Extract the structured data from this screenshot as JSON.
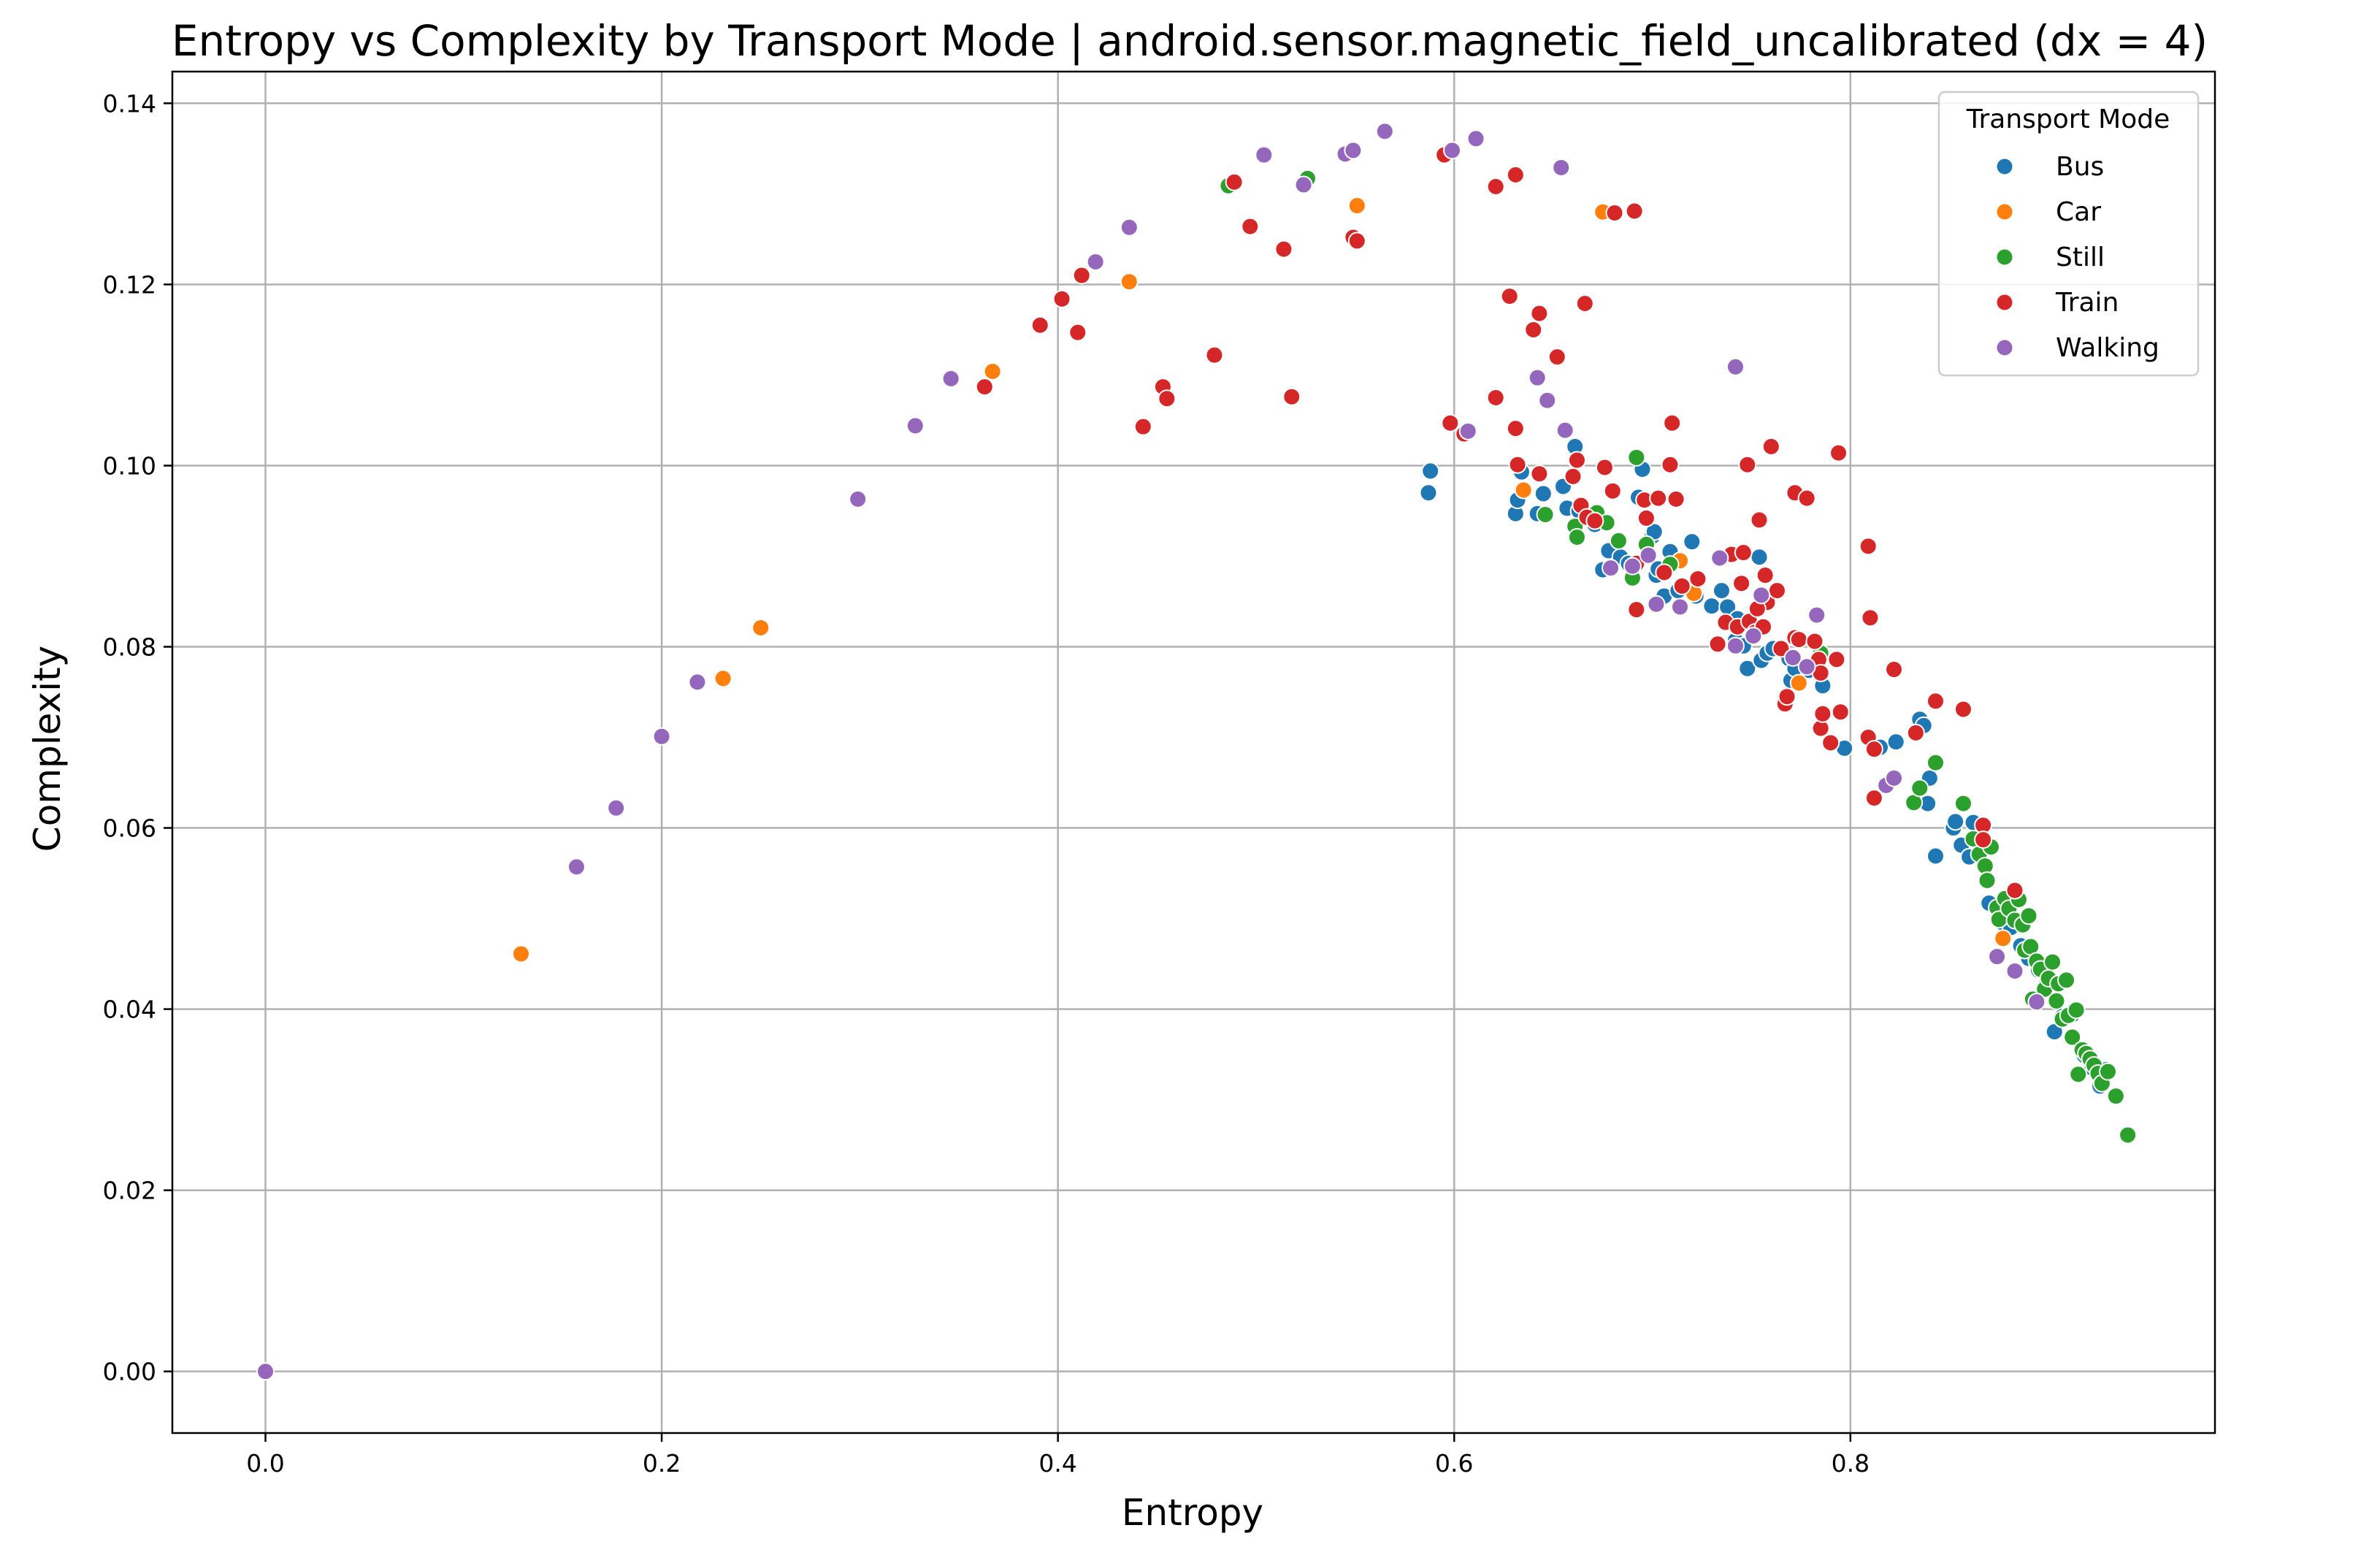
{
  "chart_data": {
    "type": "scatter",
    "title": "Entropy vs Complexity by Transport Mode | android.sensor.magnetic_field_uncalibrated (dx = 4)",
    "xlabel": "Entropy",
    "ylabel": "Complexity",
    "xlim": [
      -0.047,
      0.984
    ],
    "ylim": [
      -0.0068,
      0.1435
    ],
    "xticks": [
      0.0,
      0.2,
      0.4,
      0.6,
      0.8
    ],
    "xtick_labels": [
      "0.0",
      "0.2",
      "0.4",
      "0.6",
      "0.8"
    ],
    "yticks": [
      0.0,
      0.02,
      0.04,
      0.06,
      0.08,
      0.1,
      0.12,
      0.14
    ],
    "ytick_labels": [
      "0.00",
      "0.02",
      "0.04",
      "0.06",
      "0.08",
      "0.10",
      "0.12",
      "0.14"
    ],
    "grid": true,
    "legend": {
      "title": "Transport Mode",
      "placement": "top-right"
    },
    "series": [
      {
        "name": "Bus",
        "color": "#1f77b4",
        "points": [
          [
            0.587,
            0.097
          ],
          [
            0.588,
            0.0994
          ],
          [
            0.631,
            0.0947
          ],
          [
            0.632,
            0.0962
          ],
          [
            0.634,
            0.0993
          ],
          [
            0.642,
            0.0947
          ],
          [
            0.645,
            0.0969
          ],
          [
            0.655,
            0.0977
          ],
          [
            0.657,
            0.0953
          ],
          [
            0.661,
            0.1021
          ],
          [
            0.662,
            0.1005
          ],
          [
            0.663,
            0.095
          ],
          [
            0.671,
            0.0935
          ],
          [
            0.675,
            0.0885
          ],
          [
            0.678,
            0.0906
          ],
          [
            0.684,
            0.0899
          ],
          [
            0.688,
            0.0892
          ],
          [
            0.693,
            0.0965
          ],
          [
            0.695,
            0.0996
          ],
          [
            0.7,
            0.0922
          ],
          [
            0.701,
            0.0927
          ],
          [
            0.702,
            0.0879
          ],
          [
            0.703,
            0.0886
          ],
          [
            0.706,
            0.0856
          ],
          [
            0.709,
            0.0905
          ],
          [
            0.713,
            0.0862
          ],
          [
            0.72,
            0.0916
          ],
          [
            0.722,
            0.0856
          ],
          [
            0.73,
            0.0845
          ],
          [
            0.735,
            0.0862
          ],
          [
            0.738,
            0.0844
          ],
          [
            0.742,
            0.0807
          ],
          [
            0.743,
            0.0831
          ],
          [
            0.746,
            0.0801
          ],
          [
            0.748,
            0.0776
          ],
          [
            0.751,
            0.0819
          ],
          [
            0.754,
            0.0899
          ],
          [
            0.755,
            0.0785
          ],
          [
            0.758,
            0.0793
          ],
          [
            0.761,
            0.0798
          ],
          [
            0.769,
            0.0787
          ],
          [
            0.77,
            0.0763
          ],
          [
            0.772,
            0.0776
          ],
          [
            0.779,
            0.0774
          ],
          [
            0.786,
            0.0757
          ],
          [
            0.797,
            0.0688
          ],
          [
            0.815,
            0.0689
          ],
          [
            0.823,
            0.0695
          ],
          [
            0.835,
            0.072
          ],
          [
            0.837,
            0.0713
          ],
          [
            0.839,
            0.0627
          ],
          [
            0.84,
            0.0655
          ],
          [
            0.843,
            0.0569
          ],
          [
            0.852,
            0.06
          ],
          [
            0.853,
            0.0607
          ],
          [
            0.856,
            0.0581
          ],
          [
            0.86,
            0.0568
          ],
          [
            0.862,
            0.0606
          ],
          [
            0.87,
            0.0517
          ],
          [
            0.877,
            0.0495
          ],
          [
            0.881,
            0.049
          ],
          [
            0.886,
            0.047
          ],
          [
            0.89,
            0.0456
          ],
          [
            0.895,
            0.0443
          ],
          [
            0.899,
            0.0428
          ],
          [
            0.903,
            0.0375
          ],
          [
            0.907,
            0.0392
          ],
          [
            0.912,
            0.0394
          ],
          [
            0.918,
            0.0349
          ],
          [
            0.922,
            0.0335
          ],
          [
            0.926,
            0.0315
          ],
          [
            0.929,
            0.0333
          ]
        ]
      },
      {
        "name": "Car",
        "color": "#ff7f0e",
        "points": [
          [
            0.129,
            0.0461
          ],
          [
            0.231,
            0.0765
          ],
          [
            0.25,
            0.0821
          ],
          [
            0.367,
            0.1104
          ],
          [
            0.436,
            0.1203
          ],
          [
            0.551,
            0.1287
          ],
          [
            0.675,
            0.128
          ],
          [
            0.635,
            0.0973
          ],
          [
            0.714,
            0.0895
          ],
          [
            0.721,
            0.0859
          ],
          [
            0.774,
            0.076
          ],
          [
            0.877,
            0.0478
          ]
        ]
      },
      {
        "name": "Still",
        "color": "#2ca02c",
        "points": [
          [
            0.486,
            0.1309
          ],
          [
            0.526,
            0.1317
          ],
          [
            0.646,
            0.0946
          ],
          [
            0.661,
            0.0933
          ],
          [
            0.662,
            0.0921
          ],
          [
            0.672,
            0.0948
          ],
          [
            0.677,
            0.0937
          ],
          [
            0.683,
            0.0917
          ],
          [
            0.69,
            0.0876
          ],
          [
            0.692,
            0.1009
          ],
          [
            0.697,
            0.0913
          ],
          [
            0.709,
            0.0891
          ],
          [
            0.785,
            0.0793
          ],
          [
            0.832,
            0.0628
          ],
          [
            0.835,
            0.0644
          ],
          [
            0.843,
            0.0672
          ],
          [
            0.857,
            0.0627
          ],
          [
            0.862,
            0.0588
          ],
          [
            0.865,
            0.0571
          ],
          [
            0.868,
            0.0558
          ],
          [
            0.869,
            0.0542
          ],
          [
            0.871,
            0.0579
          ],
          [
            0.874,
            0.0512
          ],
          [
            0.875,
            0.0499
          ],
          [
            0.878,
            0.0522
          ],
          [
            0.88,
            0.0511
          ],
          [
            0.883,
            0.0498
          ],
          [
            0.885,
            0.0521
          ],
          [
            0.887,
            0.0493
          ],
          [
            0.888,
            0.0465
          ],
          [
            0.89,
            0.0503
          ],
          [
            0.891,
            0.0469
          ],
          [
            0.892,
            0.0411
          ],
          [
            0.894,
            0.0453
          ],
          [
            0.896,
            0.0444
          ],
          [
            0.898,
            0.0422
          ],
          [
            0.9,
            0.0434
          ],
          [
            0.902,
            0.0452
          ],
          [
            0.904,
            0.0409
          ],
          [
            0.905,
            0.0428
          ],
          [
            0.907,
            0.0389
          ],
          [
            0.909,
            0.0432
          ],
          [
            0.91,
            0.0393
          ],
          [
            0.912,
            0.0369
          ],
          [
            0.914,
            0.0399
          ],
          [
            0.915,
            0.0328
          ],
          [
            0.917,
            0.0355
          ],
          [
            0.919,
            0.0351
          ],
          [
            0.921,
            0.0345
          ],
          [
            0.923,
            0.0338
          ],
          [
            0.925,
            0.0329
          ],
          [
            0.927,
            0.0318
          ],
          [
            0.93,
            0.0331
          ],
          [
            0.934,
            0.0304
          ],
          [
            0.94,
            0.0261
          ]
        ]
      },
      {
        "name": "Train",
        "color": "#d62728",
        "points": [
          [
            0.363,
            0.1087
          ],
          [
            0.391,
            0.1155
          ],
          [
            0.402,
            0.1184
          ],
          [
            0.41,
            0.1147
          ],
          [
            0.412,
            0.121
          ],
          [
            0.443,
            0.1043
          ],
          [
            0.453,
            0.1087
          ],
          [
            0.455,
            0.1074
          ],
          [
            0.479,
            0.1122
          ],
          [
            0.489,
            0.1313
          ],
          [
            0.497,
            0.1264
          ],
          [
            0.514,
            0.1239
          ],
          [
            0.518,
            0.1076
          ],
          [
            0.549,
            0.1252
          ],
          [
            0.551,
            0.1248
          ],
          [
            0.595,
            0.1343
          ],
          [
            0.598,
            0.1047
          ],
          [
            0.605,
            0.1035
          ],
          [
            0.621,
            0.1308
          ],
          [
            0.621,
            0.1075
          ],
          [
            0.628,
            0.1187
          ],
          [
            0.631,
            0.1321
          ],
          [
            0.631,
            0.1041
          ],
          [
            0.632,
            0.1001
          ],
          [
            0.64,
            0.115
          ],
          [
            0.643,
            0.1168
          ],
          [
            0.643,
            0.0991
          ],
          [
            0.652,
            0.112
          ],
          [
            0.66,
            0.0988
          ],
          [
            0.662,
            0.1006
          ],
          [
            0.664,
            0.0956
          ],
          [
            0.666,
            0.1179
          ],
          [
            0.667,
            0.0943
          ],
          [
            0.671,
            0.0939
          ],
          [
            0.676,
            0.0998
          ],
          [
            0.68,
            0.0972
          ],
          [
            0.681,
            0.1279
          ],
          [
            0.691,
            0.1281
          ],
          [
            0.692,
            0.0892
          ],
          [
            0.692,
            0.0841
          ],
          [
            0.696,
            0.0962
          ],
          [
            0.697,
            0.0942
          ],
          [
            0.703,
            0.0964
          ],
          [
            0.706,
            0.0882
          ],
          [
            0.709,
            0.1001
          ],
          [
            0.71,
            0.1047
          ],
          [
            0.712,
            0.0963
          ],
          [
            0.715,
            0.0867
          ],
          [
            0.723,
            0.0875
          ],
          [
            0.733,
            0.0803
          ],
          [
            0.737,
            0.0827
          ],
          [
            0.74,
            0.0902
          ],
          [
            0.743,
            0.0822
          ],
          [
            0.745,
            0.087
          ],
          [
            0.746,
            0.0904
          ],
          [
            0.749,
            0.0828
          ],
          [
            0.752,
            0.0816
          ],
          [
            0.756,
            0.0822
          ],
          [
            0.757,
            0.0879
          ],
          [
            0.758,
            0.0849
          ],
          [
            0.76,
            0.1021
          ],
          [
            0.763,
            0.0862
          ],
          [
            0.765,
            0.0798
          ],
          [
            0.767,
            0.0737
          ],
          [
            0.768,
            0.0745
          ],
          [
            0.772,
            0.081
          ],
          [
            0.772,
            0.097
          ],
          [
            0.774,
            0.0808
          ],
          [
            0.778,
            0.0964
          ],
          [
            0.782,
            0.0806
          ],
          [
            0.784,
            0.0786
          ],
          [
            0.785,
            0.071
          ],
          [
            0.785,
            0.0771
          ],
          [
            0.786,
            0.0726
          ],
          [
            0.79,
            0.0694
          ],
          [
            0.793,
            0.0786
          ],
          [
            0.794,
            0.1014
          ],
          [
            0.795,
            0.0728
          ],
          [
            0.809,
            0.0911
          ],
          [
            0.809,
            0.07
          ],
          [
            0.81,
            0.0832
          ],
          [
            0.812,
            0.0687
          ],
          [
            0.812,
            0.0633
          ],
          [
            0.822,
            0.0775
          ],
          [
            0.833,
            0.0705
          ],
          [
            0.843,
            0.074
          ],
          [
            0.857,
            0.0731
          ],
          [
            0.867,
            0.0603
          ],
          [
            0.867,
            0.0587
          ],
          [
            0.883,
            0.0531
          ],
          [
            0.754,
            0.094
          ],
          [
            0.748,
            0.1001
          ],
          [
            0.753,
            0.0842
          ]
        ]
      },
      {
        "name": "Walking",
        "color": "#9467bd",
        "points": [
          [
            0.0,
            0.0
          ],
          [
            0.157,
            0.0557
          ],
          [
            0.177,
            0.0622
          ],
          [
            0.2,
            0.0701
          ],
          [
            0.218,
            0.0761
          ],
          [
            0.299,
            0.0963
          ],
          [
            0.328,
            0.1044
          ],
          [
            0.346,
            0.1096
          ],
          [
            0.419,
            0.1225
          ],
          [
            0.436,
            0.1263
          ],
          [
            0.504,
            0.1343
          ],
          [
            0.524,
            0.131
          ],
          [
            0.545,
            0.1344
          ],
          [
            0.549,
            0.1348
          ],
          [
            0.565,
            0.1369
          ],
          [
            0.599,
            0.1348
          ],
          [
            0.607,
            0.1038
          ],
          [
            0.611,
            0.1361
          ],
          [
            0.642,
            0.1097
          ],
          [
            0.647,
            0.1072
          ],
          [
            0.654,
            0.1329
          ],
          [
            0.656,
            0.1039
          ],
          [
            0.679,
            0.0887
          ],
          [
            0.69,
            0.0889
          ],
          [
            0.698,
            0.0901
          ],
          [
            0.702,
            0.0847
          ],
          [
            0.714,
            0.0844
          ],
          [
            0.734,
            0.0898
          ],
          [
            0.742,
            0.1109
          ],
          [
            0.742,
            0.0801
          ],
          [
            0.751,
            0.0812
          ],
          [
            0.755,
            0.0857
          ],
          [
            0.771,
            0.0788
          ],
          [
            0.778,
            0.0778
          ],
          [
            0.783,
            0.0835
          ],
          [
            0.818,
            0.0647
          ],
          [
            0.822,
            0.0655
          ],
          [
            0.874,
            0.0458
          ],
          [
            0.883,
            0.0442
          ],
          [
            0.894,
            0.0408
          ]
        ]
      }
    ]
  }
}
